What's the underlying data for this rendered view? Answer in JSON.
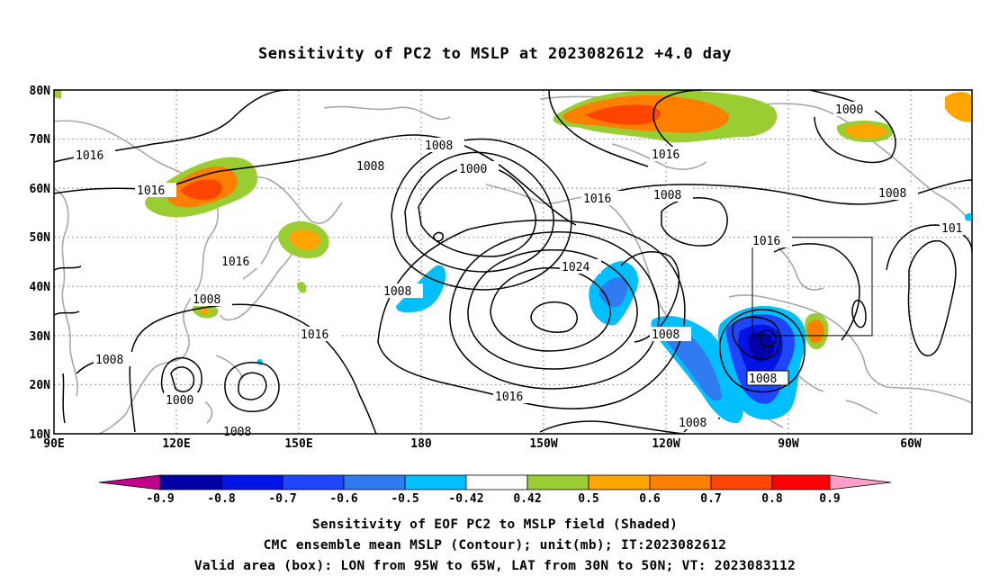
{
  "title": "Sensitivity of PC2 to MSLP at 2023082612 +4.0 day",
  "lat_labels": [
    "80N",
    "70N",
    "60N",
    "50N",
    "40N",
    "30N",
    "20N",
    "10N"
  ],
  "lon_labels": [
    "90E",
    "120E",
    "150E",
    "180",
    "150W",
    "120W",
    "90W",
    "60W"
  ],
  "contour_labels": [
    {
      "text": "1016",
      "id": "c1"
    },
    {
      "text": "1016",
      "id": "c2"
    },
    {
      "text": "1008",
      "id": "c3"
    },
    {
      "text": "1000",
      "id": "c4"
    },
    {
      "text": "1008",
      "id": "c5"
    },
    {
      "text": "1016",
      "id": "c6"
    },
    {
      "text": "1008",
      "id": "c7"
    },
    {
      "text": "1016",
      "id": "c8"
    },
    {
      "text": "1000",
      "id": "c9"
    },
    {
      "text": "1008",
      "id": "c10"
    },
    {
      "text": "101",
      "id": "c11"
    },
    {
      "text": "1016",
      "id": "c12"
    },
    {
      "text": "1008",
      "id": "c13"
    },
    {
      "text": "1016",
      "id": "c14"
    },
    {
      "text": "1008",
      "id": "c15"
    },
    {
      "text": "1024",
      "id": "c16"
    },
    {
      "text": "1016",
      "id": "c17"
    },
    {
      "text": "1008",
      "id": "c18"
    },
    {
      "text": "1000",
      "id": "c19"
    },
    {
      "text": "1008",
      "id": "c20"
    },
    {
      "text": "1016",
      "id": "c21"
    },
    {
      "text": "1008",
      "id": "c22"
    },
    {
      "text": "1008",
      "id": "c23"
    },
    {
      "text": "1008",
      "id": "c24"
    }
  ],
  "colorbar": {
    "ticks": [
      "-0.9",
      "-0.8",
      "-0.7",
      "-0.6",
      "-0.5",
      "-0.42",
      "0.42",
      "0.5",
      "0.6",
      "0.7",
      "0.8",
      "0.9"
    ],
    "colors": [
      "#c0008c",
      "#0000a8",
      "#0014e6",
      "#1e46ff",
      "#2f7cf0",
      "#00bfff",
      "#ffffff",
      "#9acd32",
      "#ffa500",
      "#ff7f00",
      "#ff4500",
      "#ff0000",
      "#ff9ec8"
    ]
  },
  "valid_box": {
    "lon_from": "95W",
    "lon_to": "65W",
    "lat_from": "30N",
    "lat_to": "50N"
  },
  "captions": [
    "Sensitivity of EOF PC2 to MSLP field (Shaded)",
    "CMC ensemble mean MSLP (Contour); unit(mb); IT:2023082612",
    "Valid area (box): LON from 95W to 65W, LAT from 30N to 50N; VT: 2023083112"
  ]
}
